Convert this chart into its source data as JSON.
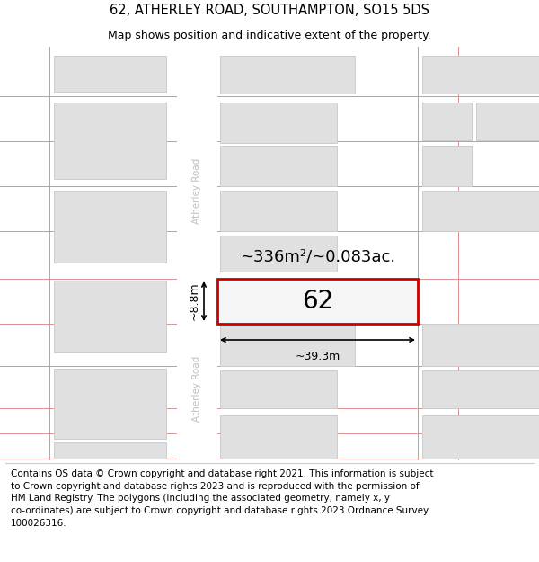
{
  "title": "62, ATHERLEY ROAD, SOUTHAMPTON, SO15 5DS",
  "subtitle": "Map shows position and indicative extent of the property.",
  "footer_text": "Contains OS data © Crown copyright and database right 2021. This information is subject\nto Crown copyright and database rights 2023 and is reproduced with the permission of\nHM Land Registry. The polygons (including the associated geometry, namely x, y\nco-ordinates) are subject to Crown copyright and database rights 2023 Ordnance Survey\n100026316.",
  "bg_color": "#f0f0f0",
  "road_fill": "#ffffff",
  "plot_outline_color": "#cc0000",
  "building_fill": "#e0e0e0",
  "building_edge": "#cccccc",
  "road_line_color": "#e09090",
  "road_label_color": "#c0c0c0",
  "area_text": "~336m²/~0.083ac.",
  "number_text": "62",
  "width_text": "~39.3m",
  "height_text": "~8.8m",
  "title_fontsize": 10.5,
  "subtitle_fontsize": 9,
  "footer_fontsize": 7.5,
  "area_fontsize": 13,
  "number_fontsize": 20,
  "dim_fontsize": 9
}
